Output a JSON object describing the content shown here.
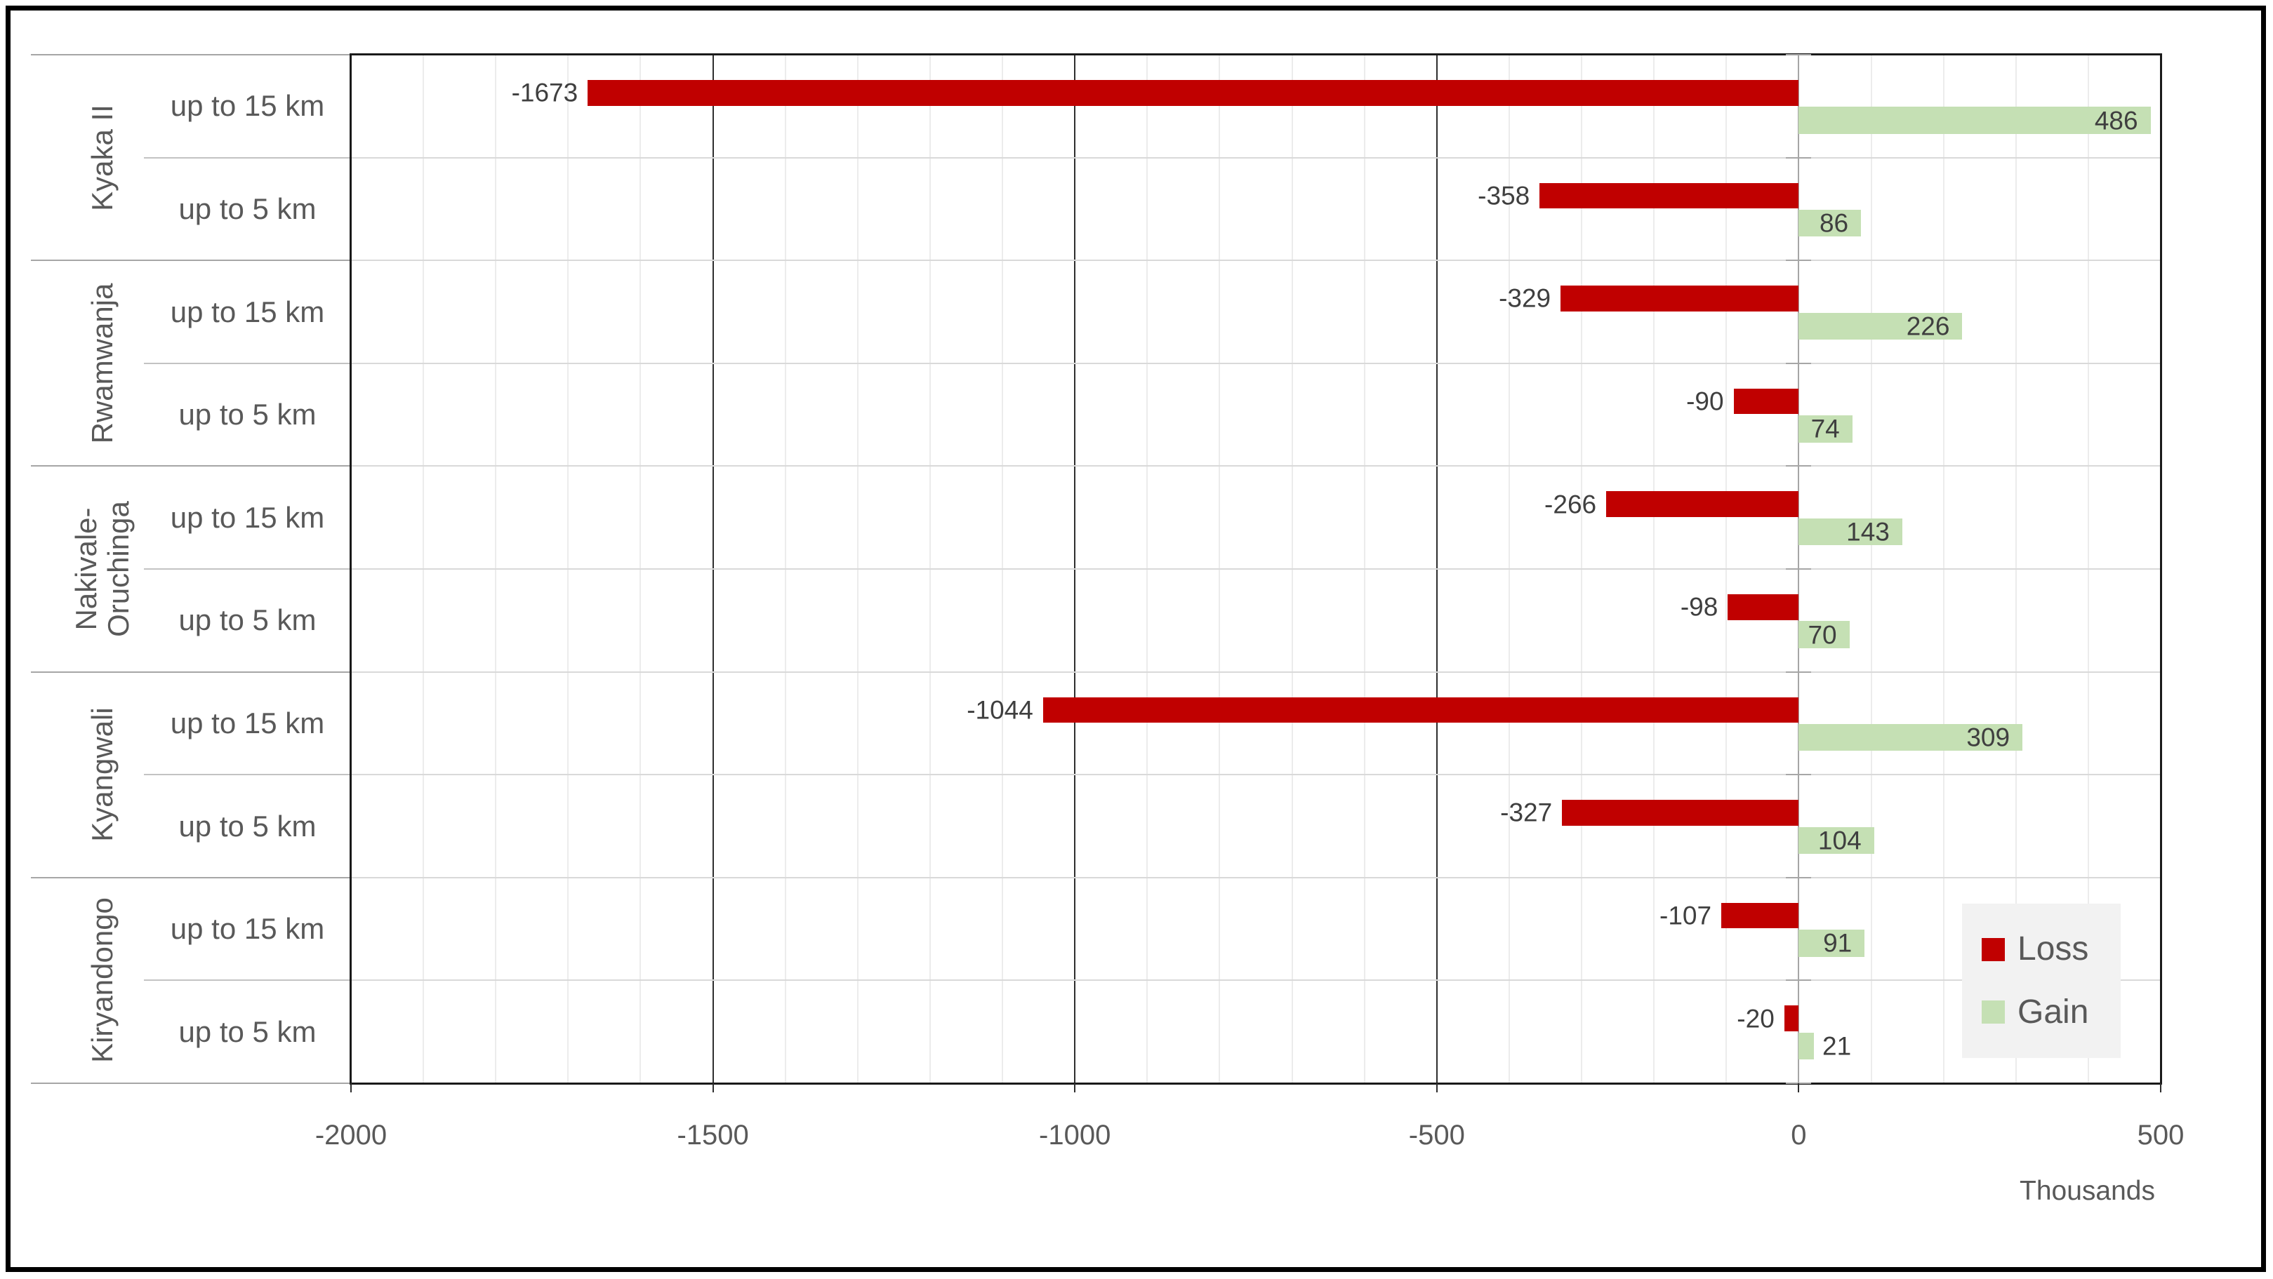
{
  "chart_data": {
    "type": "bar",
    "orientation": "horizontal-diverging",
    "title": "",
    "xlabel_unit": "Thousands",
    "x_axis": {
      "min": -2000,
      "max": 500,
      "major_step": 500,
      "minor_step": 100,
      "tick_labels": [
        "-2000",
        "-1500",
        "-1000",
        "-500",
        "0",
        "500"
      ],
      "tick_values": [
        -2000,
        -1500,
        -1000,
        -500,
        0,
        500
      ]
    },
    "series": [
      {
        "name": "Loss",
        "color": "#c00000"
      },
      {
        "name": "Gain",
        "color": "#c5e0b4"
      }
    ],
    "groups": [
      {
        "name": "Kyaka II",
        "name_lines": [
          "Kyaka II"
        ],
        "rows": [
          {
            "label": "up to 15 km",
            "loss": -1673,
            "gain": 486
          },
          {
            "label": "up to 5 km",
            "loss": -358,
            "gain": 86
          }
        ]
      },
      {
        "name": "Rwamwanja",
        "name_lines": [
          "Rwamwanja"
        ],
        "rows": [
          {
            "label": "up to 15 km",
            "loss": -329,
            "gain": 226
          },
          {
            "label": "up to 5 km",
            "loss": -90,
            "gain": 74
          }
        ]
      },
      {
        "name": "Nakivale-Oruchinga",
        "name_lines": [
          "Nakivale-",
          "Oruchinga"
        ],
        "rows": [
          {
            "label": "up to 15 km",
            "loss": -266,
            "gain": 143
          },
          {
            "label": "up to 5 km",
            "loss": -98,
            "gain": 70
          }
        ]
      },
      {
        "name": "Kyangwali",
        "name_lines": [
          "Kyangwali"
        ],
        "rows": [
          {
            "label": "up to 15 km",
            "loss": -1044,
            "gain": 309
          },
          {
            "label": "up to 5 km",
            "loss": -327,
            "gain": 104
          }
        ]
      },
      {
        "name": "Kiryandongo",
        "name_lines": [
          "Kiryandongo"
        ],
        "rows": [
          {
            "label": "up to 15 km",
            "loss": -107,
            "gain": 91
          },
          {
            "label": "up to 5 km",
            "loss": -20,
            "gain": 21
          }
        ]
      }
    ],
    "legend_position": "bottom-right",
    "grid": {
      "minor_vertical": true,
      "major_vertical": true,
      "row_separators": true
    }
  },
  "legend": {
    "items": [
      {
        "label": "Loss",
        "color": "#c00000"
      },
      {
        "label": "Gain",
        "color": "#c5e0b4"
      }
    ]
  },
  "axis_unit_label": "Thousands",
  "colors": {
    "loss": "#c00000",
    "gain": "#c5e0b4",
    "value_text": "#3f3f3f",
    "axis_text": "#595959",
    "legend_bg": "#f2f2f2"
  }
}
